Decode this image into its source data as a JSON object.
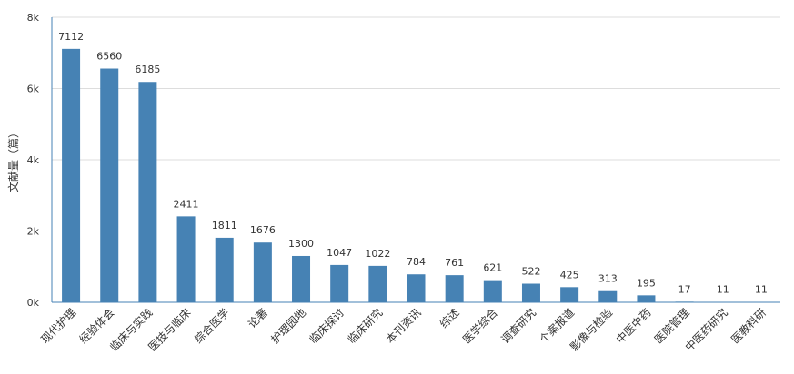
{
  "chart_data": {
    "type": "bar",
    "title": "",
    "xlabel": "",
    "ylabel": "文献量（篇）",
    "ylim": [
      0,
      8000
    ],
    "y_ticks": [
      {
        "value": 0,
        "label": "0k"
      },
      {
        "value": 2000,
        "label": "2k"
      },
      {
        "value": 4000,
        "label": "4k"
      },
      {
        "value": 6000,
        "label": "6k"
      },
      {
        "value": 8000,
        "label": "8k"
      }
    ],
    "grid": true,
    "bar_color": "#4682b4",
    "categories": [
      "现代护理",
      "经验体会",
      "临床与实践",
      "医技与临床",
      "综合医学",
      "论著",
      "护理园地",
      "临床探讨",
      "临床研究",
      "本刊资讯",
      "综述",
      "医学综合",
      "调查研究",
      "个案报道",
      "影像与检验",
      "中医中药",
      "医院管理",
      "中医药研究",
      "医教科研"
    ],
    "values": [
      7112,
      6560,
      6185,
      2411,
      1811,
      1676,
      1300,
      1047,
      1022,
      784,
      761,
      621,
      522,
      425,
      313,
      195,
      17,
      11,
      11
    ]
  }
}
